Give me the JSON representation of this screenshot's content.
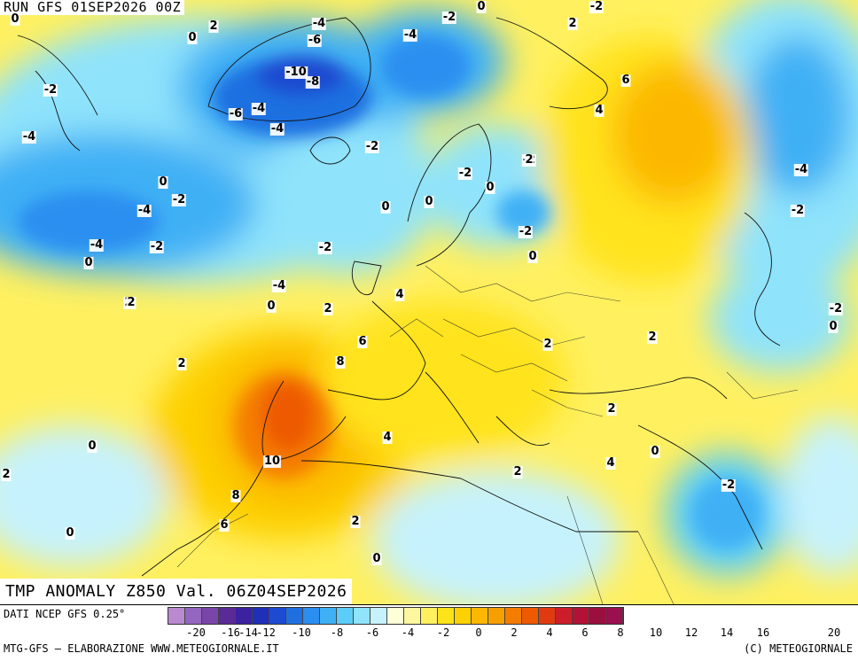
{
  "header": {
    "run_label": "RUN GFS 01SEP2026 00Z"
  },
  "title": {
    "text": "TMP ANOMALY Z850 Val. 06Z04SEP2026"
  },
  "footer": {
    "source": "DATI NCEP GFS 0.25°",
    "elaboration": "MTG-GFS — ELABORAZIONE WWW.METEOGIORNALE.IT",
    "copyright": "(C) METEOGIORNALE"
  },
  "legend": {
    "colors": [
      "#b98ad0",
      "#9466c0",
      "#7a45a8",
      "#5a2a96",
      "#3a22a0",
      "#1f2fb8",
      "#1e4ad0",
      "#1f6fe0",
      "#2a8ff0",
      "#3fb0f5",
      "#5ccdf8",
      "#8fe3fb",
      "#c6f2fd",
      "#ffffd8",
      "#fff7a0",
      "#fff060",
      "#ffe31a",
      "#fdd000",
      "#fcb800",
      "#f89f00",
      "#f47d00",
      "#ee5a00",
      "#e23a10",
      "#cc1e2a",
      "#b31236",
      "#99103e",
      "#9a0f4e"
    ],
    "ticks": [
      "-20",
      "-16",
      "-14",
      "-12",
      "-10",
      "-8",
      "-6",
      "-4",
      "-2",
      "0",
      "2",
      "4",
      "6",
      "8",
      "10",
      "12",
      "14",
      "16",
      "20"
    ]
  },
  "contour_labels": [
    "0",
    "2",
    "-4",
    "-6",
    "-10",
    "-8",
    "-6",
    "-4",
    "-4",
    "-2",
    "0",
    "0",
    "-2",
    "2",
    "-2",
    "-4",
    "-4",
    "-2",
    "-2",
    "0",
    "-2",
    "0",
    "-4",
    "-2",
    "-4",
    "-2",
    "0",
    "-2",
    "0",
    "-2",
    "6",
    "4",
    "2",
    "0",
    "-2",
    "-4",
    "2",
    "0",
    "-2",
    "-4",
    "4",
    "2",
    "2",
    "6",
    "8",
    "2",
    "2",
    "0",
    "2",
    "4",
    "2",
    "10",
    "0",
    "8",
    "6",
    "2",
    "0",
    "2",
    "0",
    "4",
    "-2",
    "0",
    "2",
    "0"
  ]
}
